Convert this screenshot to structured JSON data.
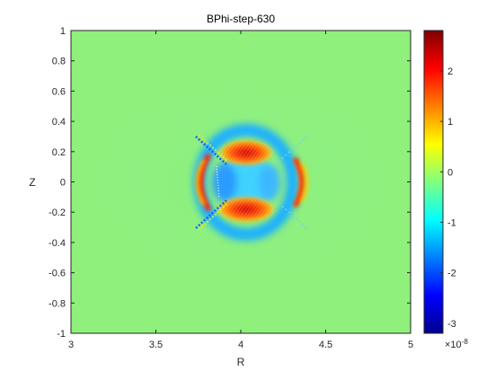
{
  "chart_data": {
    "type": "heatmap",
    "title": "BPhi-step-630",
    "xlabel": "R",
    "ylabel": "Z",
    "xlim": [
      3,
      5
    ],
    "ylim": [
      -1,
      1
    ],
    "x_ticks": [
      "3",
      "3.5",
      "4",
      "4.5",
      "5"
    ],
    "y_ticks": [
      "1",
      "0.8",
      "0.6",
      "0.4",
      "0.2",
      "0",
      "-0.2",
      "-0.4",
      "-0.6",
      "-0.8",
      "-1"
    ],
    "colorbar": {
      "colormap": "jet",
      "range": [
        -3.2,
        2.8
      ],
      "ticks": [
        "2",
        "1",
        "0",
        "-1",
        "-2",
        "-3"
      ],
      "multiplier_base": "×10",
      "multiplier_exp": "-8"
    },
    "background_value": 0,
    "features": [
      {
        "kind": "lobe",
        "r": 4.06,
        "z": 0.2,
        "value": 2.5
      },
      {
        "kind": "lobe",
        "r": 4.06,
        "z": -0.2,
        "value": 2.5
      },
      {
        "kind": "ring",
        "r": 4.0,
        "z": 0.0,
        "value": -1.2
      },
      {
        "kind": "arc",
        "r": 3.83,
        "z": 0.0,
        "value": 2.0
      },
      {
        "kind": "arc",
        "r": 4.32,
        "z": 0.0,
        "value": 1.8
      }
    ]
  }
}
